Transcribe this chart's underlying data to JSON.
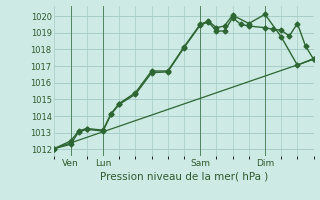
{
  "bg_color": "#ceeae4",
  "grid_color": "#a8cdc8",
  "line_color": "#2d6632",
  "title": "Pression niveau de la mer( hPa )",
  "ylabel_ticks": [
    1012,
    1013,
    1014,
    1015,
    1016,
    1017,
    1018,
    1019,
    1020
  ],
  "ylim": [
    1011.6,
    1020.6
  ],
  "xlim": [
    0,
    16
  ],
  "xtick_positions": [
    1,
    3,
    9,
    13
  ],
  "xtick_labels": [
    "Ven",
    "Lun",
    "Sam",
    "Dim"
  ],
  "vlines": [
    1,
    3,
    9,
    13
  ],
  "series1_x": [
    0,
    1,
    1.5,
    2,
    3,
    3.5,
    4,
    5,
    6,
    7,
    8,
    9,
    9.5,
    10,
    10.5,
    11,
    11.5,
    12,
    13,
    13.5,
    14,
    14.5,
    15,
    15.5,
    16
  ],
  "series1_y": [
    1012.05,
    1012.3,
    1013.05,
    1013.2,
    1013.1,
    1014.1,
    1014.7,
    1015.3,
    1016.6,
    1016.65,
    1018.1,
    1019.45,
    1019.65,
    1019.1,
    1019.1,
    1019.9,
    1019.5,
    1019.4,
    1019.3,
    1019.2,
    1019.15,
    1018.8,
    1019.55,
    1018.2,
    1017.4
  ],
  "series2_x": [
    0,
    1,
    1.5,
    2,
    3,
    3.5,
    4,
    5,
    6,
    7,
    8,
    9,
    9.5,
    10,
    10.5,
    11,
    12,
    13,
    14,
    15,
    16
  ],
  "series2_y": [
    1012.05,
    1012.5,
    1013.1,
    1013.25,
    1013.15,
    1014.15,
    1014.75,
    1015.4,
    1016.7,
    1016.7,
    1018.15,
    1019.5,
    1019.7,
    1019.3,
    1019.4,
    1020.05,
    1019.55,
    1020.1,
    1018.75,
    1017.05,
    1017.45
  ],
  "series3_x": [
    0,
    16
  ],
  "series3_y": [
    1012.05,
    1017.4
  ],
  "figsize": [
    3.2,
    2.0
  ],
  "dpi": 100
}
